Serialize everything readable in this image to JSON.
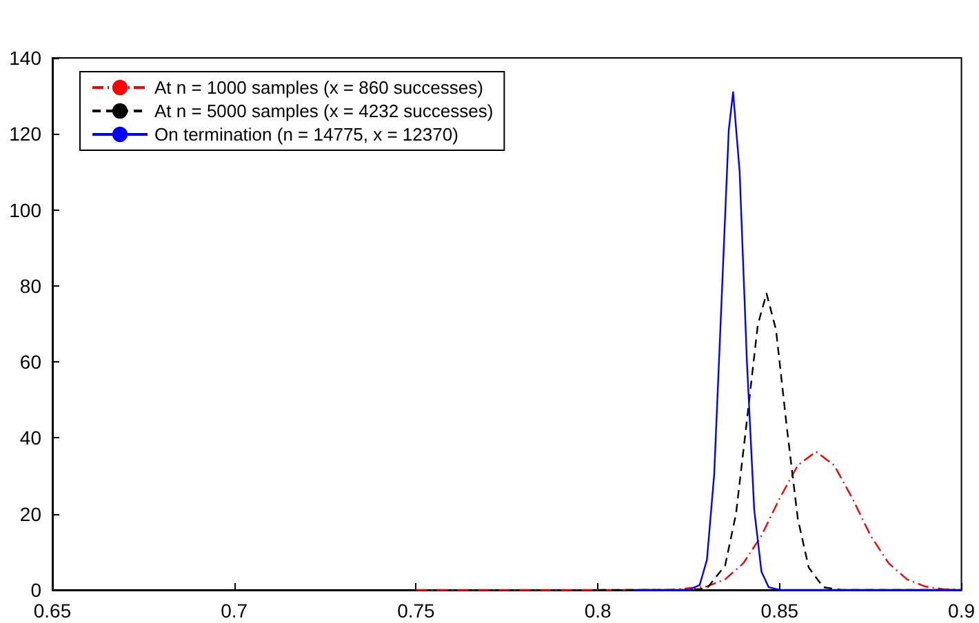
{
  "chart_data": {
    "type": "line",
    "xlim": [
      0.65,
      0.9
    ],
    "xticks": [
      0.65,
      0.7,
      0.75,
      0.8,
      0.85,
      0.9
    ],
    "ylim": [
      0,
      140
    ],
    "yticks": [
      0,
      20,
      40,
      60,
      80,
      100,
      120,
      140
    ],
    "grid": false,
    "legend": "top left",
    "marker": "none",
    "series": [
      {
        "name": "At n = 1000 samples (x = 860 successes)",
        "color": "#ff0000",
        "line_style": "dashdot",
        "x": [
          0.75,
          0.8,
          0.82,
          0.83,
          0.835,
          0.84,
          0.845,
          0.85,
          0.855,
          0.86,
          0.865,
          0.87,
          0.875,
          0.88,
          0.885,
          0.89,
          0.895,
          0.9
        ],
        "values": [
          0,
          0,
          0,
          0.9,
          2.8,
          7,
          14.3,
          24.1,
          32.8,
          36.4,
          32.8,
          24.1,
          14.3,
          7,
          2.8,
          0.9,
          0.2,
          0
        ]
      },
      {
        "name": "At n = 5000 samples (x = 4232 successes)",
        "color": "#000000",
        "line_style": "dashed",
        "x": [
          0.8,
          0.825,
          0.83,
          0.835,
          0.838,
          0.841,
          0.844,
          0.8464,
          0.849,
          0.852,
          0.855,
          0.858,
          0.862,
          0.867,
          0.875,
          0.9
        ],
        "values": [
          0,
          0,
          0.4,
          6.4,
          20,
          44.6,
          69.8,
          78,
          68.5,
          42.6,
          18.7,
          5.9,
          0.7,
          0,
          0,
          0
        ]
      },
      {
        "name": "On termination (n = 14775, x = 12370)",
        "color": "#0000ff",
        "line_style": "solid",
        "x": [
          0.81,
          0.825,
          0.828,
          0.83,
          0.832,
          0.834,
          0.836,
          0.8372,
          0.839,
          0.841,
          0.843,
          0.845,
          0.847,
          0.85,
          0.9
        ],
        "values": [
          0,
          0,
          1.3,
          7.9,
          30.4,
          75.5,
          121,
          131,
          110,
          60,
          21.2,
          4.8,
          0.7,
          0,
          0
        ]
      }
    ]
  }
}
